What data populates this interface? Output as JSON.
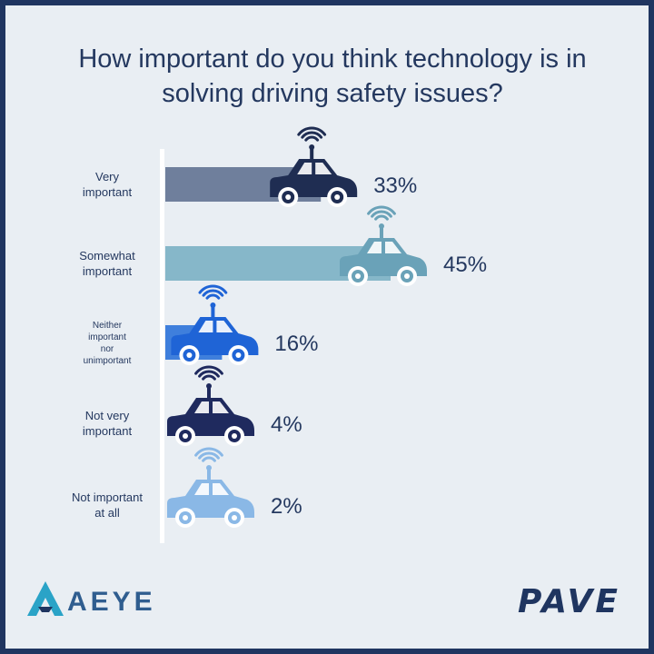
{
  "title": "How important do you think technology is in solving driving safety issues?",
  "chart_data": {
    "type": "bar",
    "orientation": "horizontal",
    "title": "How important do you think technology is in solving driving safety issues?",
    "categories": [
      [
        "Very",
        "important"
      ],
      [
        "Somewhat",
        "important"
      ],
      [
        "Neither",
        "important",
        "nor",
        "unimportant"
      ],
      [
        "Not very",
        "important"
      ],
      [
        "Not important",
        "at all"
      ]
    ],
    "values": [
      33,
      45,
      16,
      4,
      2
    ],
    "value_labels": [
      "33%",
      "45%",
      "16%",
      "4%",
      "2%"
    ],
    "colors": [
      "#6f7f9c",
      "#86b7c9",
      "#3f7fdc",
      "#1f2a5e",
      "#9bc1e8"
    ],
    "car_colors": [
      "#1f2d52",
      "#6aa2b8",
      "#1f64d6",
      "#1f2a5e",
      "#8ab8e6"
    ],
    "xlim": [
      0,
      50
    ],
    "grid": false,
    "legend": "none"
  },
  "logos": {
    "left": "AEYE",
    "right": "PAVE"
  }
}
